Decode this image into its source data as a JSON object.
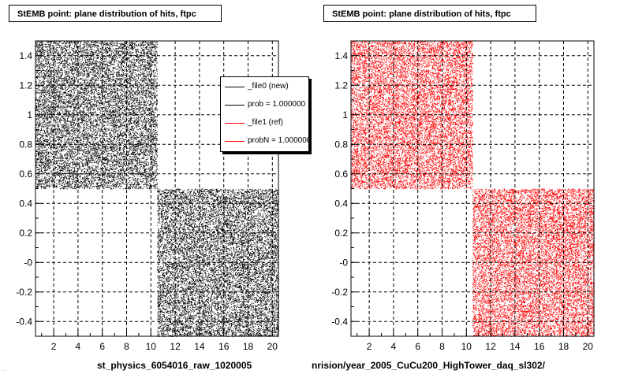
{
  "panels": [
    {
      "title": "StEMB point: plane distribution of hits, ftpc",
      "xtitle": "st_physics_6054016_raw_1020005"
    },
    {
      "title": "StEMB point: plane distribution of hits, ftpc",
      "xtitle": "nrision/year_2005_CuCu200_HighTower_daq_sl302/"
    }
  ],
  "legend": {
    "items": [
      {
        "label": "_file0 (new)",
        "color": "#000000"
      },
      {
        "label": "prob = 1.000000",
        "color": "#000000"
      },
      {
        "label": "_file1 (ref)",
        "color": "#ff0000"
      },
      {
        "label": "probN = 1.000000",
        "color": "#ff0000"
      }
    ]
  },
  "corner_text": "...",
  "chart_data": [
    {
      "type": "scatter",
      "title": "StEMB point: plane distribution of hits, ftpc",
      "xlabel": "st_physics_6054016_raw_1020005",
      "ylabel": "",
      "xlim": [
        0.5,
        20.5
      ],
      "ylim": [
        -0.5,
        1.5
      ],
      "xticks": [
        "2",
        "4",
        "6",
        "8",
        "10",
        "12",
        "14",
        "16",
        "18",
        "20"
      ],
      "yticks": [
        "-0.4",
        "-0.2",
        "-0",
        "0.2",
        "0.4",
        "0.6",
        "0.8",
        "1",
        "1.2",
        "1.4"
      ],
      "grid": true,
      "marker_color": "#000000",
      "regions": [
        {
          "x": [
            0.5,
            10.5
          ],
          "y": [
            0.5,
            1.5
          ]
        },
        {
          "x": [
            10.5,
            20.5
          ],
          "y": [
            -0.5,
            0.5
          ]
        }
      ]
    },
    {
      "type": "scatter",
      "title": "StEMB point: plane distribution of hits, ftpc",
      "xlabel": "nrision/year_2005_CuCu200_HighTower_daq_sl302/",
      "ylabel": "",
      "xlim": [
        0.5,
        20.5
      ],
      "ylim": [
        -0.5,
        1.5
      ],
      "xticks": [
        "2",
        "4",
        "6",
        "8",
        "10",
        "12",
        "14",
        "16",
        "18",
        "20"
      ],
      "yticks": [
        "-0.4",
        "-0.2",
        "-0",
        "0.2",
        "0.4",
        "0.6",
        "0.8",
        "1",
        "1.2",
        "1.4"
      ],
      "grid": true,
      "marker_color": "#ff0000",
      "regions": [
        {
          "x": [
            0.5,
            10.5
          ],
          "y": [
            0.5,
            1.5
          ]
        },
        {
          "x": [
            10.5,
            20.5
          ],
          "y": [
            -0.5,
            0.5
          ]
        }
      ]
    }
  ]
}
